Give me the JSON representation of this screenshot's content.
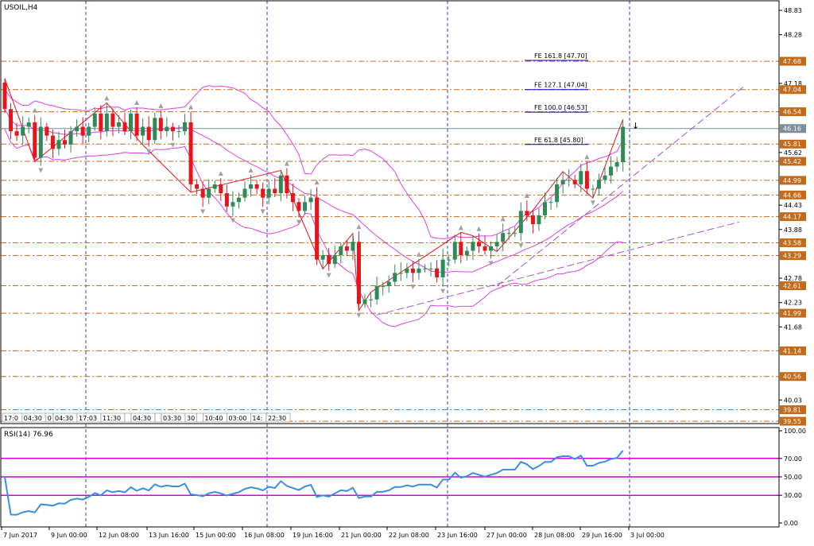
{
  "symbol_label": "USOIL,H4",
  "rsi_label": "RSI(14) 76.96",
  "arrow_glyph": "↓",
  "colors": {
    "bull": "#2e8b57",
    "bear": "#e8141c",
    "bands": "#e040e0",
    "fib_level": "#c46a1a",
    "price_tag": "#c46a1a",
    "current_tag": "#7f8c99",
    "rsi_line": "#3a8ee6",
    "rsi_level": "#d400d4",
    "trend": "#9b59d0",
    "zigzag": "#e8141c",
    "fractal": "#a0a0a0",
    "period_sep": "#3b3bcc",
    "fib_label": "#0000cc"
  },
  "chart_data": [
    {
      "type": "candlestick",
      "title": "USOIL,H4",
      "ylim": [
        39.55,
        48.83
      ],
      "y_ticks": [
        "48.83",
        "48.28",
        "47.18",
        "45.62",
        "44.43",
        "43.88",
        "42.78",
        "42.23",
        "41.68",
        "40.03"
      ],
      "price_tags": [
        {
          "label": "47.68",
          "value": 47.68
        },
        {
          "label": "47.04",
          "value": 47.04
        },
        {
          "label": "46.54",
          "value": 46.54
        },
        {
          "label": "45.81",
          "value": 45.81
        },
        {
          "label": "45.42",
          "value": 45.42
        },
        {
          "label": "44.99",
          "value": 44.99
        },
        {
          "label": "44.66",
          "value": 44.66
        },
        {
          "label": "44.17",
          "value": 44.17
        },
        {
          "label": "43.58",
          "value": 43.58
        },
        {
          "label": "43.29",
          "value": 43.29
        },
        {
          "label": "42.61",
          "value": 42.61
        },
        {
          "label": "41.99",
          "value": 41.99
        },
        {
          "label": "41.14",
          "value": 41.14
        },
        {
          "label": "40.56",
          "value": 40.56
        },
        {
          "label": "39.81",
          "value": 39.81
        },
        {
          "label": "39.55",
          "value": 39.55
        }
      ],
      "current_price": {
        "label": "46.16",
        "value": 46.16
      },
      "fib_labels": [
        {
          "text": "FE 161.8 [47.70]",
          "value": 47.7
        },
        {
          "text": "FE 127.1 [47.04]",
          "value": 47.04
        },
        {
          "text": "FE 100.0 [46.53]",
          "value": 46.53
        },
        {
          "text": "FE 61.8 [45.80]",
          "value": 45.8
        }
      ],
      "x_labels": [
        "7 Jun 2017",
        "9 Jun 00:00",
        "12 Jun 08:00",
        "13 Jun 16:00",
        "15 Jun 00:00",
        "16 Jun 08:00",
        "19 Jun 16:00",
        "21 Jun 00:00",
        "22 Jun 08:00",
        "23 Jun 16:00",
        "27 Jun 00:00",
        "28 Jun 08:00",
        "29 Jun 16:00",
        "3 Jul 00:00"
      ],
      "session_labels": [
        "17:0",
        "04:30",
        "0",
        "04:30",
        "17:03",
        "11:30",
        "",
        "04:30",
        "",
        "03:30",
        "30",
        "",
        "10:40",
        "03:00",
        "14:",
        "22:30"
      ],
      "closes": [
        46.6,
        46.1,
        46.0,
        46.2,
        46.3,
        45.5,
        46.2,
        46.0,
        45.7,
        45.9,
        45.8,
        46.1,
        46.2,
        46.0,
        46.2,
        46.5,
        46.1,
        46.5,
        46.2,
        46.3,
        46.1,
        46.5,
        46.0,
        46.2,
        45.9,
        46.4,
        46.1,
        46.2,
        46.1,
        46.1,
        46.3,
        44.9,
        44.8,
        44.6,
        44.8,
        44.9,
        44.7,
        44.4,
        44.5,
        44.6,
        44.8,
        44.9,
        44.8,
        44.6,
        44.8,
        44.7,
        45.1,
        44.7,
        44.5,
        44.3,
        44.5,
        44.6,
        43.2,
        43.3,
        43.1,
        43.3,
        43.5,
        43.4,
        43.6,
        42.2,
        42.3,
        42.3,
        42.6,
        42.6,
        42.7,
        42.9,
        42.9,
        43.0,
        42.9,
        43.0,
        43.0,
        43.0,
        42.8,
        43.2,
        43.2,
        43.6,
        43.3,
        43.4,
        43.6,
        43.5,
        43.4,
        43.5,
        43.6,
        43.8,
        43.8,
        43.8,
        44.3,
        44.2,
        44.0,
        44.2,
        44.5,
        44.5,
        44.9,
        45.0,
        45.0,
        44.9,
        45.2,
        44.8,
        44.8,
        45.0,
        45.1,
        45.3,
        45.4,
        46.2
      ],
      "rsi": {
        "ylim": [
          0,
          100
        ],
        "ticks": [
          "100.00",
          "70.00",
          "50.00",
          "30.00",
          "0.00"
        ],
        "levels": [
          70,
          50,
          30
        ]
      }
    }
  ]
}
